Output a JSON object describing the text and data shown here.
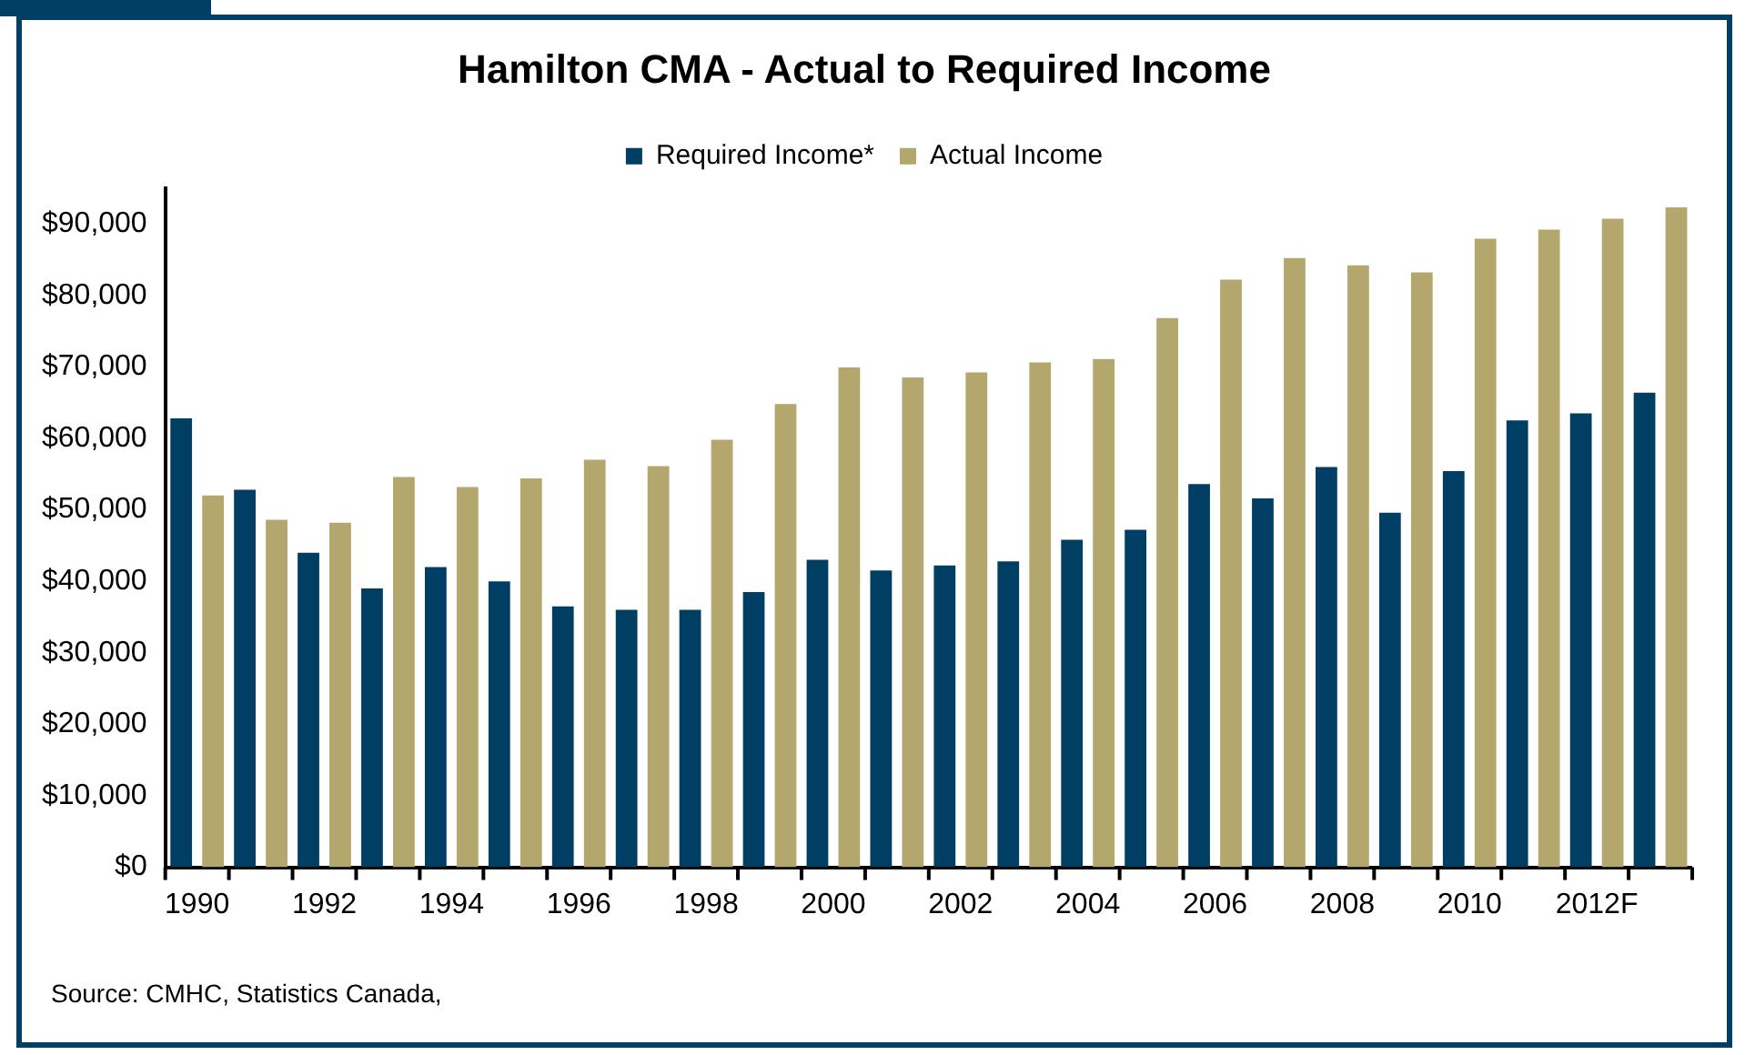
{
  "chart_data": {
    "type": "bar",
    "title": "Hamilton CMA - Actual to Required Income",
    "categories": [
      "1990",
      null,
      "1992",
      null,
      "1994",
      null,
      "1996",
      null,
      "1998",
      null,
      "2000",
      null,
      "2002",
      null,
      "2004",
      null,
      "2006",
      null,
      "2008",
      null,
      "2010",
      null,
      "2012F",
      null
    ],
    "series": [
      {
        "name": "Required Income*",
        "color": "#003f63",
        "values": [
          62800,
          52800,
          44000,
          39000,
          42000,
          40000,
          36500,
          36000,
          36000,
          38500,
          43000,
          41500,
          42200,
          42800,
          45800,
          47200,
          53600,
          51600,
          56000,
          49600,
          55400,
          62500,
          63500,
          66400
        ]
      },
      {
        "name": "Actual Income",
        "color": "#b3a76d",
        "values": [
          52000,
          48600,
          48200,
          54600,
          53200,
          54400,
          57000,
          56100,
          59800,
          64800,
          69900,
          68500,
          69200,
          70600,
          71100,
          76800,
          82200,
          85200,
          84200,
          83200,
          87900,
          89200,
          90700,
          92300
        ]
      }
    ],
    "ylim": [
      0,
      95000
    ],
    "yticks": [
      {
        "value": 0,
        "label": "$0"
      },
      {
        "value": 10000,
        "label": "$10,000"
      },
      {
        "value": 20000,
        "label": "$20,000"
      },
      {
        "value": 30000,
        "label": "$30,000"
      },
      {
        "value": 40000,
        "label": "$40,000"
      },
      {
        "value": 50000,
        "label": "$50,000"
      },
      {
        "value": 60000,
        "label": "$60,000"
      },
      {
        "value": 70000,
        "label": "$70,000"
      },
      {
        "value": 80000,
        "label": "$80,000"
      },
      {
        "value": 90000,
        "label": "$90,000"
      }
    ],
    "grid": false,
    "legend": "top",
    "annotations": [
      "Source: CMHC, Statistics Canada,"
    ]
  }
}
